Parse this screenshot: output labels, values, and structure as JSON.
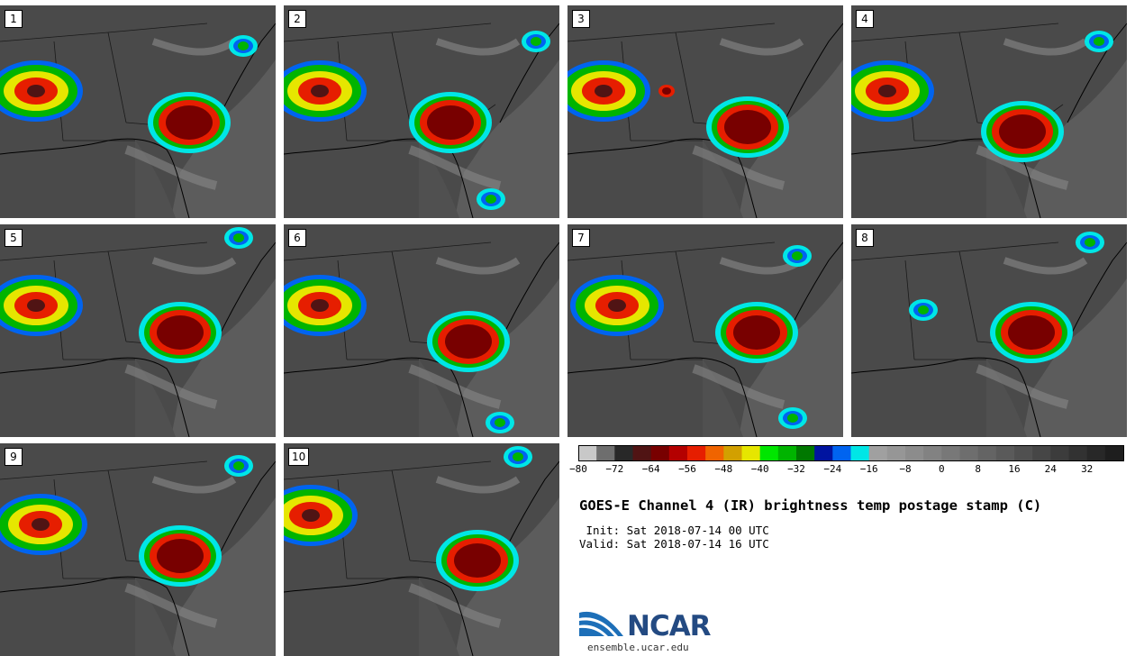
{
  "panels": [
    {
      "label": "1"
    },
    {
      "label": "2"
    },
    {
      "label": "3"
    },
    {
      "label": "4"
    },
    {
      "label": "5"
    },
    {
      "label": "6"
    },
    {
      "label": "7"
    },
    {
      "label": "8"
    },
    {
      "label": "9"
    },
    {
      "label": "10"
    }
  ],
  "colorbar": {
    "colors": [
      "#c8c8c8",
      "#6e6e6e",
      "#282828",
      "#501414",
      "#780000",
      "#b40000",
      "#e61e00",
      "#f06400",
      "#d2a000",
      "#e6e600",
      "#00e600",
      "#00b400",
      "#007800",
      "#0014a0",
      "#0064f0",
      "#00e6e6",
      "#a0a0a0",
      "#969696",
      "#8c8c8c",
      "#828282",
      "#787878",
      "#6e6e6e",
      "#646464",
      "#5a5a5a",
      "#505050",
      "#464646",
      "#3c3c3c",
      "#323232",
      "#282828",
      "#1e1e1e"
    ],
    "tick_labels": [
      "−80",
      "−72",
      "−64",
      "−56",
      "−48",
      "−40",
      "−32",
      "−24",
      "−16",
      "−8",
      "0",
      "8",
      "16",
      "24",
      "32"
    ]
  },
  "title": "GOES-E Channel 4 (IR) brightness temp postage stamp (C)",
  "init": " Init: Sat 2018-07-14 00 UTC",
  "valid": "Valid: Sat 2018-07-14 16 UTC",
  "logo": {
    "name": "NCAR",
    "url": "ensemble.ucar.edu",
    "color": "#234a82"
  }
}
